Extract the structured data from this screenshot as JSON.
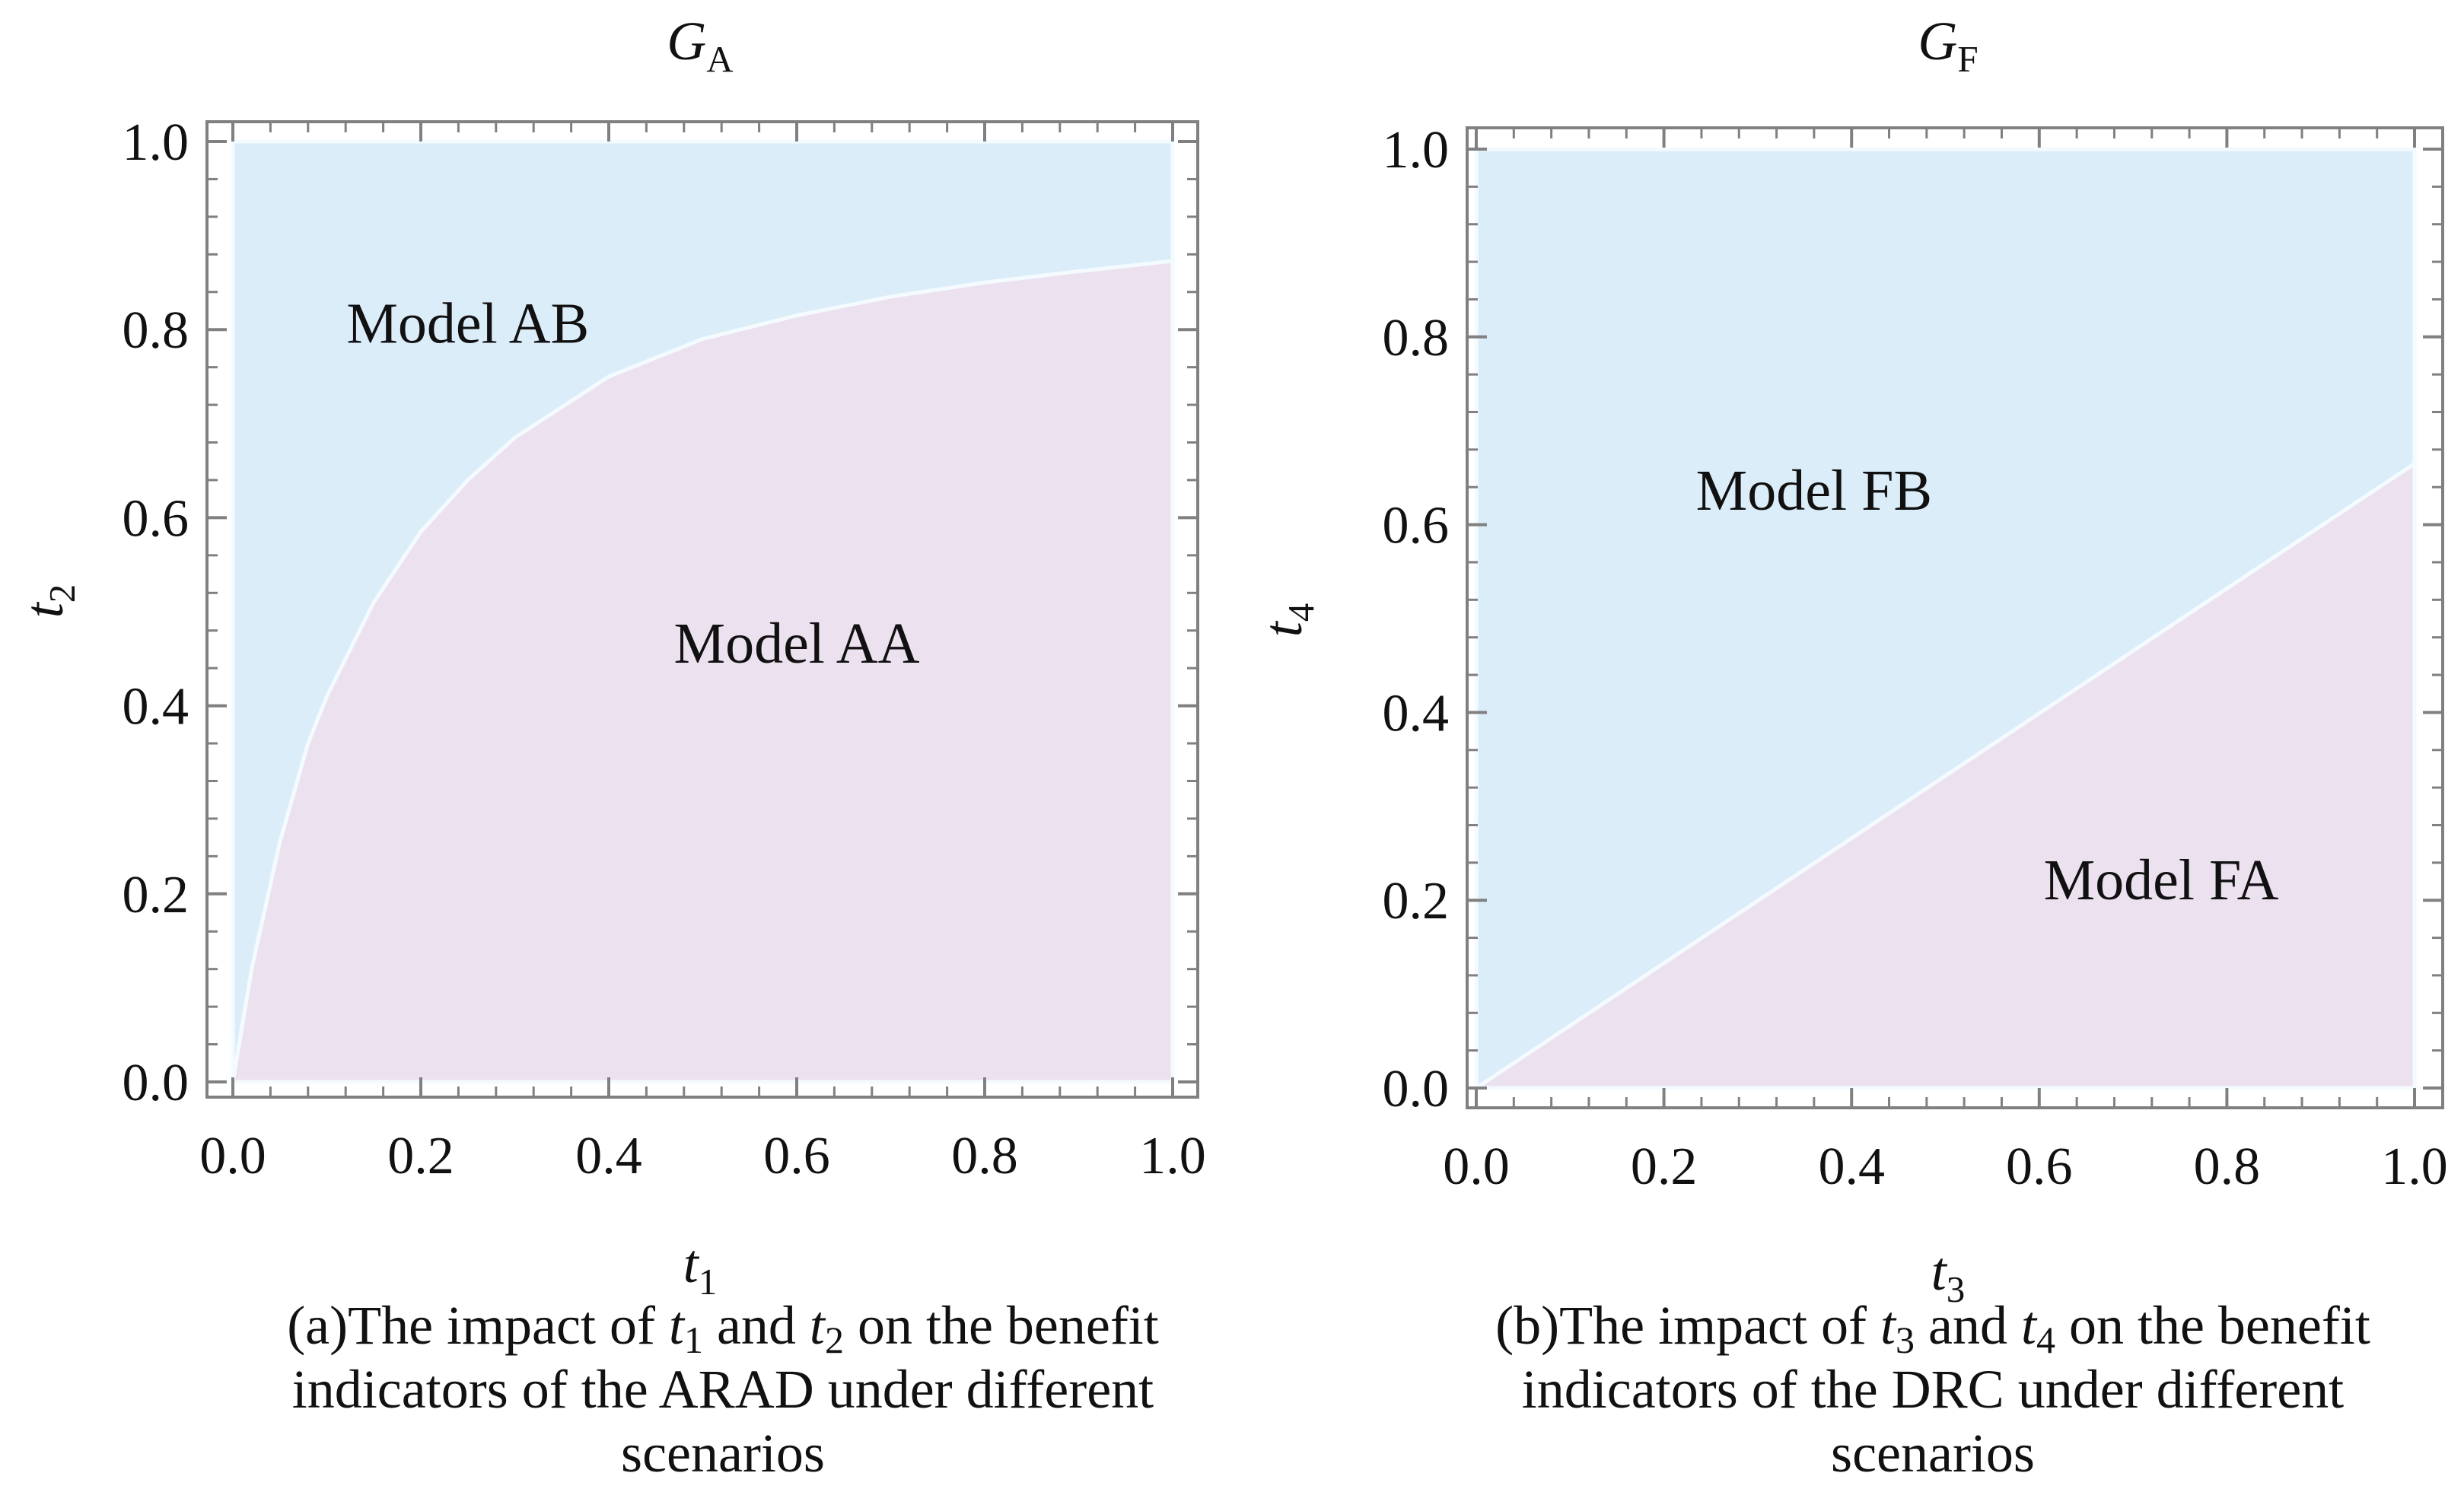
{
  "chart_data": [
    {
      "type": "area",
      "title": "G_A",
      "title_main": "G",
      "title_sub": "A",
      "xlabel": "t_1",
      "xlabel_main": "t",
      "xlabel_sub": "1",
      "ylabel": "t_2",
      "ylabel_main": "t",
      "ylabel_sub": "2",
      "xlim": [
        0,
        1
      ],
      "ylim": [
        0,
        1
      ],
      "xticks": [
        "0.0",
        "0.2",
        "0.4",
        "0.6",
        "0.8",
        "1.0"
      ],
      "yticks": [
        "0.0",
        "0.2",
        "0.4",
        "0.6",
        "0.8",
        "1.0"
      ],
      "boundary": {
        "x": [
          0,
          0.02,
          0.05,
          0.08,
          0.1,
          0.15,
          0.2,
          0.25,
          0.3,
          0.4,
          0.5,
          0.6,
          0.7,
          0.8,
          0.9,
          1.0
        ],
        "y": [
          0,
          0.12,
          0.255,
          0.36,
          0.41,
          0.51,
          0.585,
          0.64,
          0.685,
          0.75,
          0.79,
          0.815,
          0.835,
          0.85,
          0.862,
          0.873
        ]
      },
      "regions": [
        {
          "name": "Model AB",
          "position": "above boundary",
          "label_at": [
            0.25,
            0.8
          ],
          "color": "#dcedfa"
        },
        {
          "name": "Model AA",
          "position": "below boundary",
          "label_at": [
            0.6,
            0.46
          ],
          "color": "#ebe1ef"
        }
      ],
      "caption": {
        "pre": "(a)The impact of ",
        "var1": "t",
        "sub1": "1",
        "mid": " and ",
        "var2": "t",
        "sub2": "2",
        "post": " on the benefit",
        "line2": "indicators of the ARAD under different",
        "line3": "scenarios"
      }
    },
    {
      "type": "area",
      "title": "G_F",
      "title_main": "G",
      "title_sub": "F",
      "xlabel": "t_3",
      "xlabel_main": "t",
      "xlabel_sub": "3",
      "ylabel": "t_4",
      "ylabel_main": "t",
      "ylabel_sub": "4",
      "xlim": [
        0,
        1
      ],
      "ylim": [
        0,
        1
      ],
      "xticks": [
        "0.0",
        "0.2",
        "0.4",
        "0.6",
        "0.8",
        "1.0"
      ],
      "yticks": [
        "0.0",
        "0.2",
        "0.4",
        "0.6",
        "0.8",
        "1.0"
      ],
      "boundary": {
        "x": [
          0,
          1.0
        ],
        "y": [
          0,
          0.665
        ]
      },
      "regions": [
        {
          "name": "Model FB",
          "position": "above boundary",
          "label_at": [
            0.36,
            0.63
          ],
          "color": "#dcedfa"
        },
        {
          "name": "Model FA",
          "position": "below boundary",
          "label_at": [
            0.73,
            0.215
          ],
          "color": "#ebe1ef"
        }
      ],
      "caption": {
        "pre": "(b)The impact of ",
        "var1": "t",
        "sub1": "3",
        "mid": " and ",
        "var2": "t",
        "sub2": "4",
        "post": " on the benefit",
        "line2": "indicators of the DRC under different",
        "line3": "scenarios"
      }
    }
  ],
  "colors": {
    "region_upper": "#dcedfa",
    "region_lower": "#ebe1ef",
    "boundary": "#f4fbff",
    "frame": "#808080",
    "text": "#111111"
  }
}
